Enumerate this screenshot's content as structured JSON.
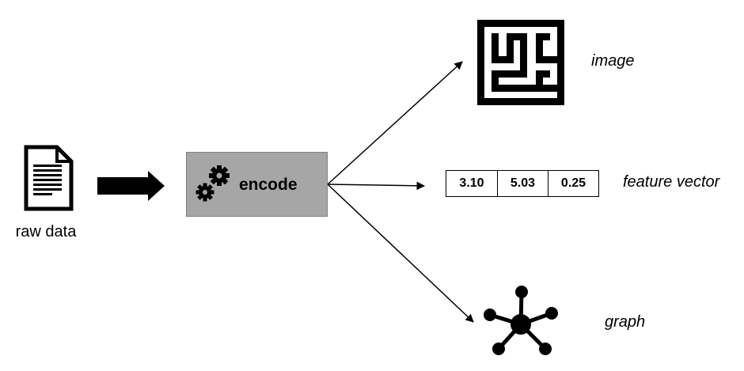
{
  "nodes": {
    "raw_data": {
      "label": "raw data",
      "icon": "document-icon"
    },
    "encode": {
      "label": "encode",
      "icon": "gears-icon",
      "fill": "#a6a6a6"
    },
    "outputs": [
      {
        "label": "image",
        "icon": "maze-icon"
      },
      {
        "label": "feature vector",
        "values": [
          "3.10",
          "5.03",
          "0.25"
        ]
      },
      {
        "label": "graph",
        "icon": "network-graph-icon"
      }
    ]
  },
  "edges": [
    {
      "from": "raw data",
      "to": "encode",
      "style": "thick-block-arrow"
    },
    {
      "from": "encode",
      "to": "image",
      "style": "thin-arrow"
    },
    {
      "from": "encode",
      "to": "feature vector",
      "style": "thin-arrow"
    },
    {
      "from": "encode",
      "to": "graph",
      "style": "thin-arrow"
    }
  ]
}
